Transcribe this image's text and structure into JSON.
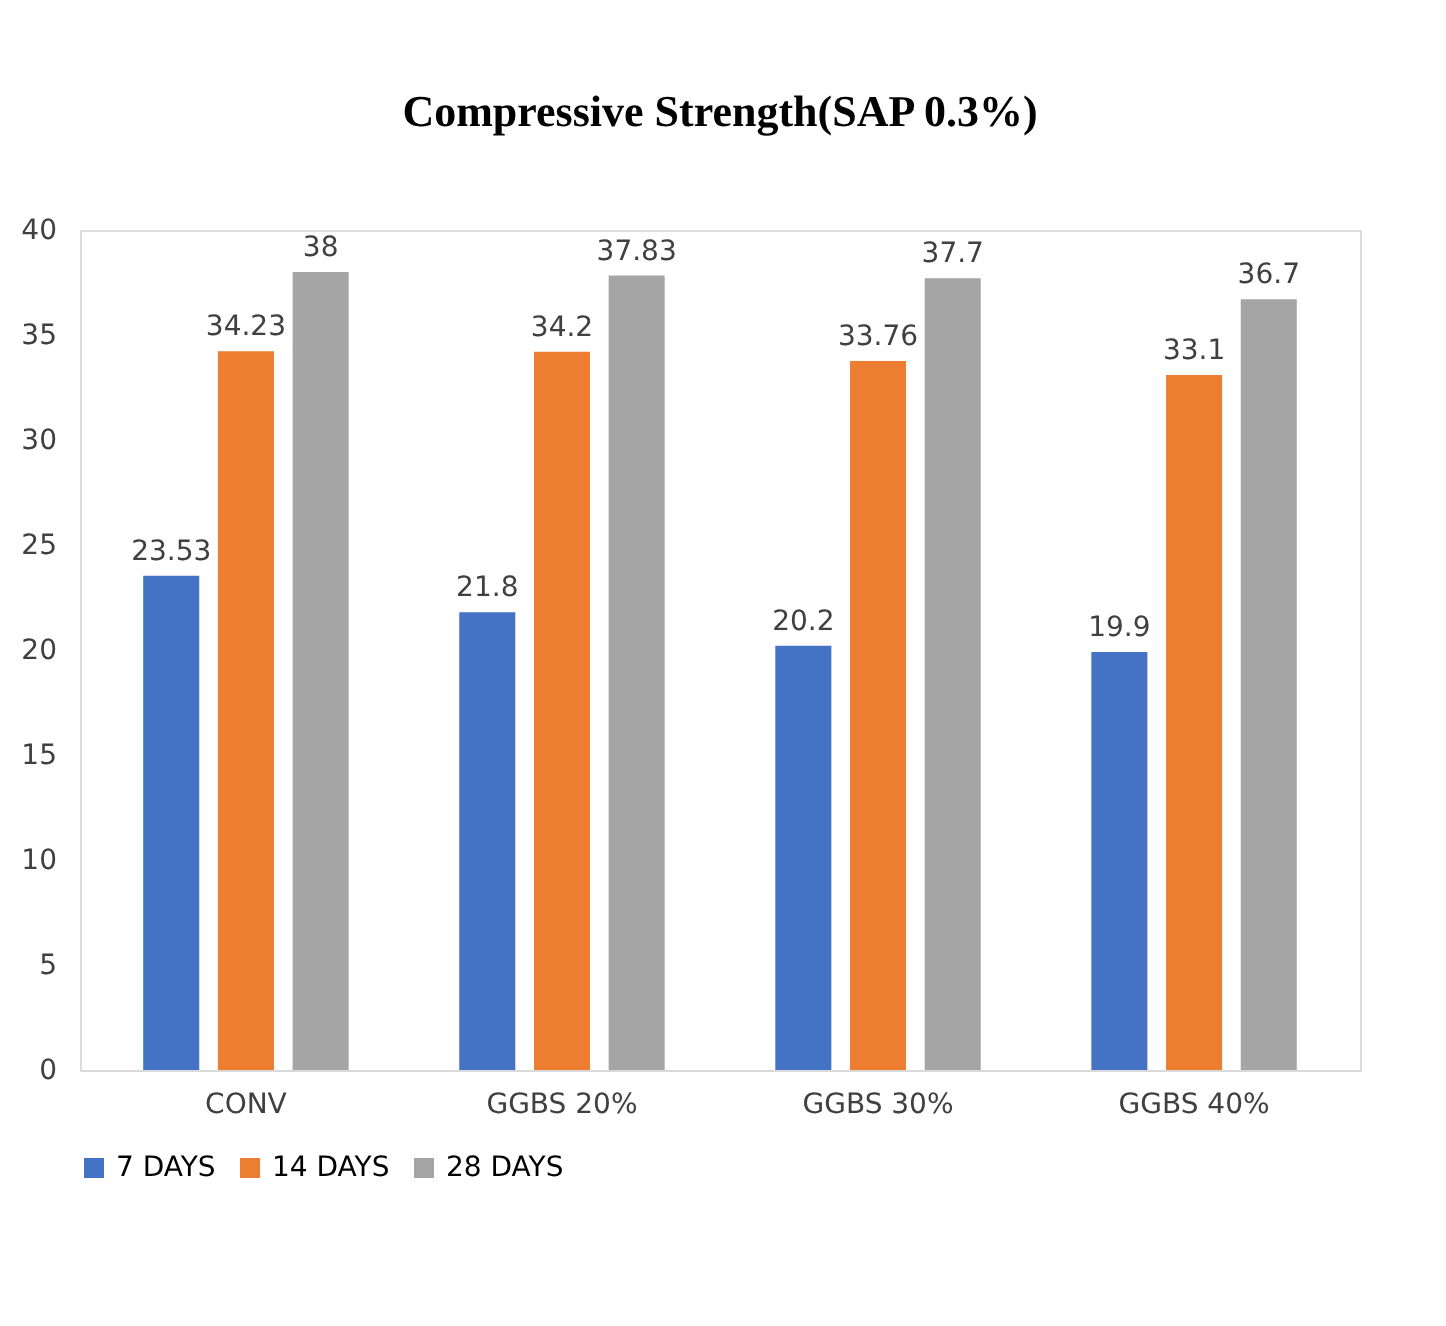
{
  "chart_data": {
    "type": "bar",
    "title": "Compressive Strength(SAP 0.3%)",
    "categories": [
      "CONV",
      "GGBS 20%",
      "GGBS 30%",
      "GGBS 40%"
    ],
    "series": [
      {
        "name": "7 DAYS",
        "color": "#4472c4",
        "values": [
          23.53,
          21.8,
          20.2,
          19.9
        ]
      },
      {
        "name": "14 DAYS",
        "color": "#ed7d31",
        "values": [
          34.23,
          34.2,
          33.76,
          33.1
        ]
      },
      {
        "name": "28 DAYS",
        "color": "#a5a5a5",
        "values": [
          38,
          37.83,
          37.7,
          36.7
        ]
      }
    ],
    "ylim": [
      0,
      40
    ],
    "yticks": [
      0,
      5,
      10,
      15,
      20,
      25,
      30,
      35,
      40
    ],
    "grid": false,
    "legend": "bottom",
    "data_labels": true
  }
}
